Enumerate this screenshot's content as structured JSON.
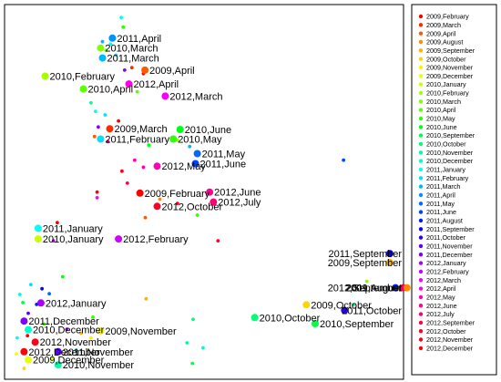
{
  "chart_data": {
    "type": "scatter",
    "title": "",
    "xlabel": "",
    "ylabel": "",
    "axes": "none",
    "grid": false,
    "legend_position": "right",
    "x_range": [
      0,
      100
    ],
    "y_range": [
      0,
      100
    ],
    "legend": [
      {
        "label": "2009,February",
        "color": "#ff0000"
      },
      {
        "label": "2009,March",
        "color": "#ff2a00"
      },
      {
        "label": "2009,April",
        "color": "#ff5a00"
      },
      {
        "label": "2009,August",
        "color": "#ff8a00"
      },
      {
        "label": "2009,September",
        "color": "#ffb000"
      },
      {
        "label": "2009,October",
        "color": "#ffd500"
      },
      {
        "label": "2009,November",
        "color": "#fff000"
      },
      {
        "label": "2009,December",
        "color": "#eaff00"
      },
      {
        "label": "2010,January",
        "color": "#c8ff00"
      },
      {
        "label": "2010,February",
        "color": "#a6ff00"
      },
      {
        "label": "2010,March",
        "color": "#80ff00"
      },
      {
        "label": "2010,April",
        "color": "#5aff00"
      },
      {
        "label": "2010,May",
        "color": "#30ff00"
      },
      {
        "label": "2010,June",
        "color": "#00ff18"
      },
      {
        "label": "2010,September",
        "color": "#00ff46"
      },
      {
        "label": "2010,October",
        "color": "#00ff76"
      },
      {
        "label": "2010,November",
        "color": "#00ffa4"
      },
      {
        "label": "2010,December",
        "color": "#00ffd0"
      },
      {
        "label": "2011,January",
        "color": "#00fff8"
      },
      {
        "label": "2011,February",
        "color": "#00e0ff"
      },
      {
        "label": "2011,March",
        "color": "#00b8ff"
      },
      {
        "label": "2011,April",
        "color": "#0092ff"
      },
      {
        "label": "2011,May",
        "color": "#006aff"
      },
      {
        "label": "2011,June",
        "color": "#0042ff"
      },
      {
        "label": "2011,August",
        "color": "#001cff"
      },
      {
        "label": "2011,September",
        "color": "#0a00ff"
      },
      {
        "label": "2011,October",
        "color": "#3000ff"
      },
      {
        "label": "2011,November",
        "color": "#5800ff"
      },
      {
        "label": "2011,December",
        "color": "#8000ff"
      },
      {
        "label": "2012,January",
        "color": "#a800ff"
      },
      {
        "label": "2012,February",
        "color": "#d000ff"
      },
      {
        "label": "2012,March",
        "color": "#f400ff"
      },
      {
        "label": "2012,April",
        "color": "#ff00e4"
      },
      {
        "label": "2012,May",
        "color": "#ff00bc"
      },
      {
        "label": "2012,June",
        "color": "#ff0096"
      },
      {
        "label": "2012,July",
        "color": "#ff0070"
      },
      {
        "label": "2012,September",
        "color": "#ff004c"
      },
      {
        "label": "2012,October",
        "color": "#ff002c"
      },
      {
        "label": "2012,November",
        "color": "#ff0016"
      },
      {
        "label": "2012,December",
        "color": "#ff0008"
      }
    ],
    "labeled_points": [
      {
        "label": "2011,April",
        "x": 27.0,
        "y": 93.9,
        "color": "#0092ff"
      },
      {
        "label": "2010,March",
        "x": 23.9,
        "y": 91.1,
        "color": "#80ff00"
      },
      {
        "label": "2011,March",
        "x": 24.4,
        "y": 88.3,
        "color": "#00b8ff"
      },
      {
        "label": "2010,February",
        "x": 9.4,
        "y": 83.2,
        "color": "#a6ff00"
      },
      {
        "label": "2009,April",
        "x": 35.5,
        "y": 84.9,
        "color": "#ff5a00"
      },
      {
        "label": "2012,April",
        "x": 31.3,
        "y": 81.0,
        "color": "#ff00e4"
      },
      {
        "label": "2010,April",
        "x": 19.4,
        "y": 79.6,
        "color": "#5aff00"
      },
      {
        "label": "2012,March",
        "x": 40.8,
        "y": 77.6,
        "color": "#f400ff"
      },
      {
        "label": "2009,March",
        "x": 26.3,
        "y": 68.4,
        "color": "#ff2a00"
      },
      {
        "label": "2010,June",
        "x": 44.7,
        "y": 68.2,
        "color": "#00ff18"
      },
      {
        "label": "2011,February",
        "x": 23.9,
        "y": 65.5,
        "color": "#00e0ff"
      },
      {
        "label": "2010,May",
        "x": 42.9,
        "y": 65.5,
        "color": "#30ff00"
      },
      {
        "label": "2011,May",
        "x": 49.2,
        "y": 61.4,
        "color": "#006aff"
      },
      {
        "label": "2011,June",
        "x": 48.7,
        "y": 58.6,
        "color": "#0042ff"
      },
      {
        "label": "2012,May",
        "x": 38.7,
        "y": 57.9,
        "color": "#ff00bc"
      },
      {
        "label": "2009,February",
        "x": 34.2,
        "y": 50.3,
        "color": "#ff0000"
      },
      {
        "label": "2012,June",
        "x": 52.4,
        "y": 50.6,
        "color": "#ff0096"
      },
      {
        "label": "2012,July",
        "x": 53.4,
        "y": 47.8,
        "color": "#ff0070"
      },
      {
        "label": "2012,October",
        "x": 38.7,
        "y": 46.6,
        "color": "#ff002c"
      },
      {
        "label": "2011,January",
        "x": 7.6,
        "y": 40.4,
        "color": "#00fff8"
      },
      {
        "label": "2010,January",
        "x": 7.6,
        "y": 37.4,
        "color": "#c8ff00"
      },
      {
        "label": "2012,February",
        "x": 28.6,
        "y": 37.4,
        "color": "#d000ff"
      },
      {
        "label": "2011,September",
        "x": 99.5,
        "y": 33.3,
        "color": "#0a00ff"
      },
      {
        "label": "2009,September",
        "x": 99.5,
        "y": 30.8,
        "color": "#ffb000"
      },
      {
        "label": "2012,September",
        "x": 103.0,
        "y": 23.7,
        "color": "#ff004c"
      },
      {
        "label": "2011,August",
        "x": 101.0,
        "y": 23.7,
        "color": "#001cff"
      },
      {
        "label": "2009,October",
        "x": 77.7,
        "y": 18.9,
        "color": "#ffd500"
      },
      {
        "label": "2009,August",
        "x": 104.0,
        "y": 23.7,
        "color": "#ff8a00"
      },
      {
        "label": "2012,January",
        "x": 8.3,
        "y": 19.4,
        "color": "#a800ff"
      },
      {
        "label": "2010,October",
        "x": 64.2,
        "y": 15.3,
        "color": "#00ff76"
      },
      {
        "label": "2011,October",
        "x": 87.7,
        "y": 17.3,
        "color": "#3000ff"
      },
      {
        "label": "2011,December",
        "x": 3.9,
        "y": 14.3,
        "color": "#8000ff"
      },
      {
        "label": "2010,December",
        "x": 5.0,
        "y": 11.9,
        "color": "#00ffd0"
      },
      {
        "label": "2009,November",
        "x": 23.9,
        "y": 11.6,
        "color": "#fff000"
      },
      {
        "label": "2010,September",
        "x": 80.0,
        "y": 13.6,
        "color": "#00ff46"
      },
      {
        "label": "2012,November",
        "x": 6.8,
        "y": 8.4,
        "color": "#ff0016"
      },
      {
        "label": "2012,December",
        "x": 3.9,
        "y": 5.7,
        "color": "#ff0008"
      },
      {
        "label": "2011,November",
        "x": 12.8,
        "y": 5.7,
        "color": "#5800ff"
      },
      {
        "label": "2009,December",
        "x": 5.0,
        "y": 3.4,
        "color": "#eaff00"
      },
      {
        "label": "2010,November",
        "x": 12.8,
        "y": 2.0,
        "color": "#00ffa4"
      }
    ],
    "small_points": [
      {
        "x": 29.3,
        "y": 99.7,
        "color": "#00fff8"
      },
      {
        "x": 29.8,
        "y": 97.0,
        "color": "#30ff00"
      },
      {
        "x": 24.4,
        "y": 92.9,
        "color": "#00b8ff"
      },
      {
        "x": 26.5,
        "y": 92.2,
        "color": "#00fff8"
      },
      {
        "x": 25.3,
        "y": 90.5,
        "color": "#80ff00"
      },
      {
        "x": 27.9,
        "y": 89.1,
        "color": "#00e0ff"
      },
      {
        "x": 32.1,
        "y": 85.6,
        "color": "#ff2a00"
      },
      {
        "x": 30.2,
        "y": 84.9,
        "color": "#8000ff"
      },
      {
        "x": 35.1,
        "y": 83.9,
        "color": "#ff0016"
      },
      {
        "x": 33.5,
        "y": 78.8,
        "color": "#5aff00"
      },
      {
        "x": 21.4,
        "y": 75.7,
        "color": "#00ffa4"
      },
      {
        "x": 22.6,
        "y": 73.3,
        "color": "#00fff8"
      },
      {
        "x": 25.1,
        "y": 72.3,
        "color": "#00e0ff"
      },
      {
        "x": 28.6,
        "y": 70.6,
        "color": "#ff0000"
      },
      {
        "x": 23.3,
        "y": 68.9,
        "color": "#8000ff"
      },
      {
        "x": 22.3,
        "y": 66.2,
        "color": "#ff5a00"
      },
      {
        "x": 25.8,
        "y": 64.8,
        "color": "#ff0096"
      },
      {
        "x": 36.5,
        "y": 63.8,
        "color": "#00ff18"
      },
      {
        "x": 44.0,
        "y": 65.2,
        "color": "#80ff00"
      },
      {
        "x": 47.2,
        "y": 63.4,
        "color": "#00b8ff"
      },
      {
        "x": 32.8,
        "y": 59.6,
        "color": "#ff00bc"
      },
      {
        "x": 35.1,
        "y": 57.6,
        "color": "#ff0096"
      },
      {
        "x": 29.5,
        "y": 56.5,
        "color": "#ff0016"
      },
      {
        "x": 30.9,
        "y": 53.1,
        "color": "#ff004c"
      },
      {
        "x": 23.0,
        "y": 50.6,
        "color": "#ff0016"
      },
      {
        "x": 23.0,
        "y": 49.0,
        "color": "#f400ff"
      },
      {
        "x": 39.4,
        "y": 48.6,
        "color": "#ff8a00"
      },
      {
        "x": 44.0,
        "y": 47.4,
        "color": "#ff0008"
      },
      {
        "x": 49.2,
        "y": 44.1,
        "color": "#30ff00"
      },
      {
        "x": 35.6,
        "y": 43.4,
        "color": "#ff5a00"
      },
      {
        "x": 12.6,
        "y": 42.0,
        "color": "#ff0000"
      },
      {
        "x": 11.6,
        "y": 36.9,
        "color": "#d000ff"
      },
      {
        "x": 54.6,
        "y": 36.9,
        "color": "#ff002c"
      },
      {
        "x": 87.4,
        "y": 59.6,
        "color": "#0042ff"
      },
      {
        "x": 14.0,
        "y": 26.8,
        "color": "#00ff18"
      },
      {
        "x": 8.6,
        "y": 23.4,
        "color": "#0a00ff"
      },
      {
        "x": 5.7,
        "y": 24.6,
        "color": "#00e0ff"
      },
      {
        "x": 10.5,
        "y": 22.0,
        "color": "#006aff"
      },
      {
        "x": 2.8,
        "y": 21.8,
        "color": "#00ffd0"
      },
      {
        "x": 3.6,
        "y": 19.5,
        "color": "#00ff46"
      },
      {
        "x": 7.2,
        "y": 19.0,
        "color": "#001cff"
      },
      {
        "x": 5.0,
        "y": 16.5,
        "color": "#5800ff"
      },
      {
        "x": 21.9,
        "y": 15.4,
        "color": "#30ff00"
      },
      {
        "x": 35.8,
        "y": 20.6,
        "color": "#ffb000"
      },
      {
        "x": 48.1,
        "y": 14.8,
        "color": "#00ff76"
      },
      {
        "x": 21.4,
        "y": 9.6,
        "color": "#fff000"
      },
      {
        "x": 46.5,
        "y": 8.2,
        "color": "#00ffa4"
      },
      {
        "x": 50.7,
        "y": 6.8,
        "color": "#00ffd0"
      },
      {
        "x": 4.8,
        "y": 10.2,
        "color": "#ff0000"
      },
      {
        "x": 2.1,
        "y": 9.6,
        "color": "#00fff8"
      },
      {
        "x": 1.9,
        "y": 5.1,
        "color": "#eaff00"
      },
      {
        "x": 11.4,
        "y": 3.7,
        "color": "#c8ff00"
      },
      {
        "x": 3.9,
        "y": 1.0,
        "color": "#ffd500"
      },
      {
        "x": 17.5,
        "y": 6.1,
        "color": "#00e0ff"
      },
      {
        "x": 15.1,
        "y": 12.0,
        "color": "#a800ff"
      },
      {
        "x": 9.1,
        "y": 13.5,
        "color": "#5aff00"
      },
      {
        "x": 47.9,
        "y": 2.4,
        "color": "#00ff46"
      },
      {
        "x": 18.8,
        "y": 10.9,
        "color": "#ffb000"
      },
      {
        "x": 93.5,
        "y": 25.5,
        "color": "#80ff00"
      },
      {
        "x": 90.0,
        "y": 18.9,
        "color": "#00ff76"
      }
    ]
  }
}
